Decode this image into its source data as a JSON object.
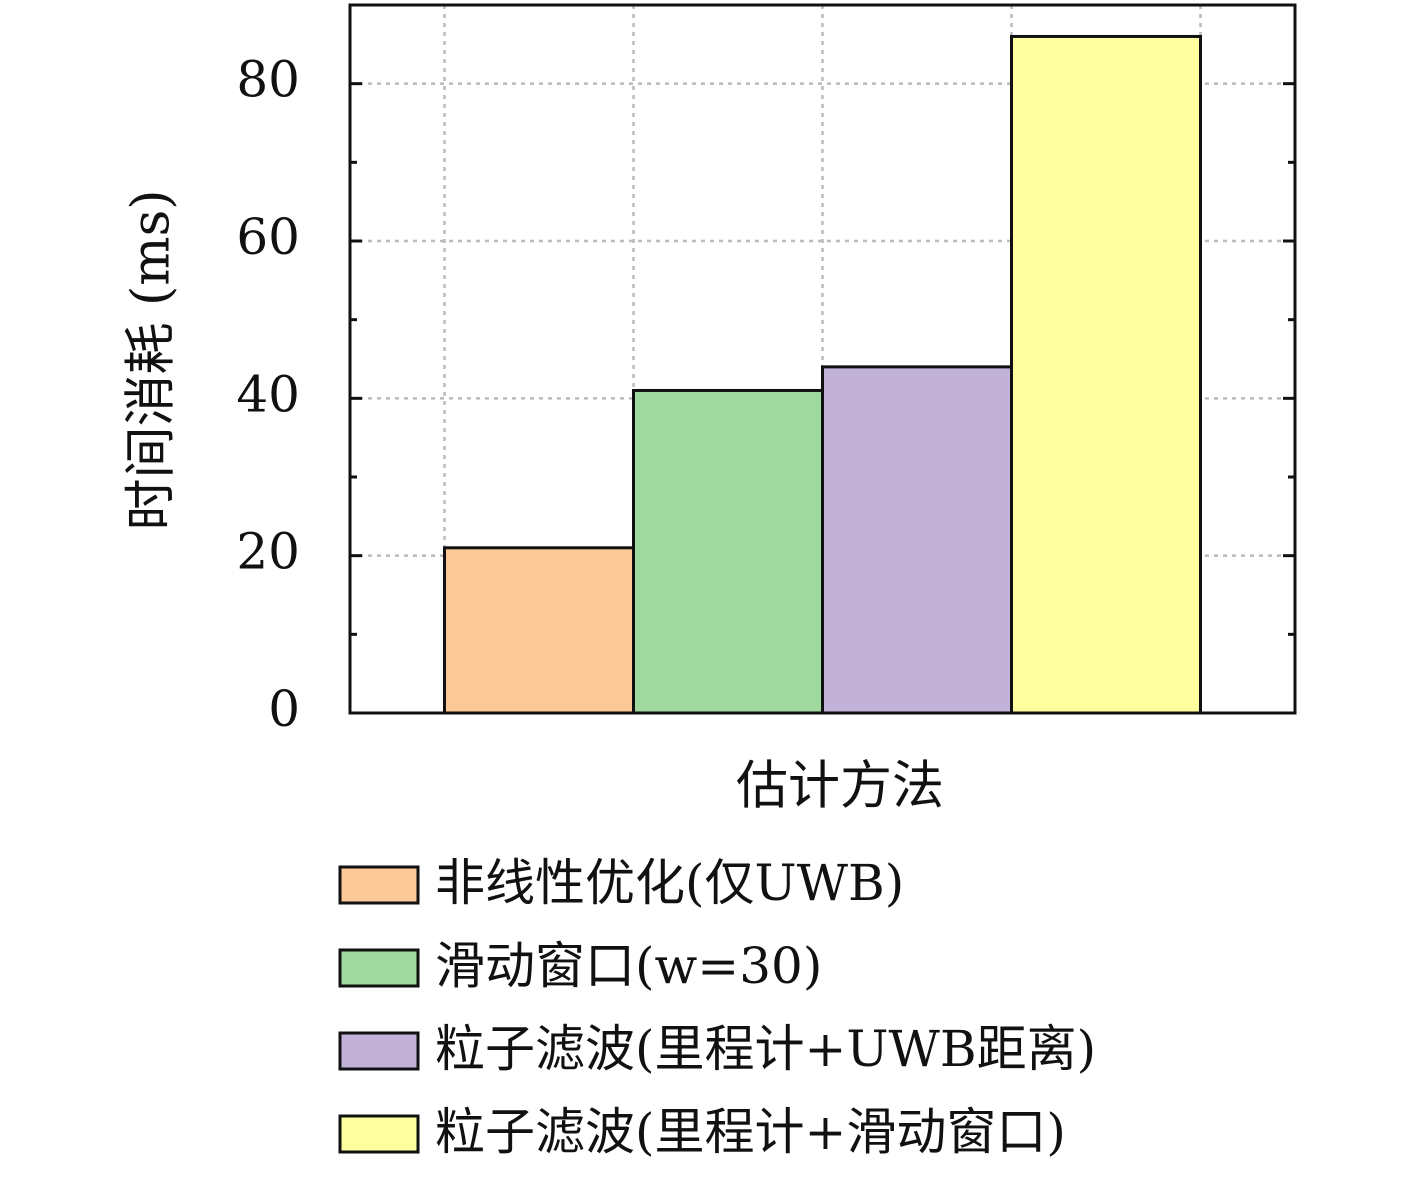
{
  "chart_data": {
    "type": "bar",
    "y_label": "时间消耗 (ms)",
    "x_label": "估计方法",
    "categories": [
      null
    ],
    "series": [
      {
        "name": "非线性优化(仅UWB)",
        "color": "#fdc897",
        "values": [
          21
        ]
      },
      {
        "name": "滑动窗口(w=30)",
        "color": "#a0d99e",
        "values": [
          41
        ]
      },
      {
        "name": "粒子滤波(里程计+UWB距离)",
        "color": "#c2b2d7",
        "values": [
          44
        ]
      },
      {
        "name": "粒子滤波(里程计+滑动窗口)",
        "color": "#ffff9f",
        "values": [
          86
        ]
      }
    ],
    "ylim": [
      0,
      90
    ],
    "yticks": [
      0,
      20,
      40,
      60,
      80
    ],
    "grid": true,
    "legend": "below"
  }
}
